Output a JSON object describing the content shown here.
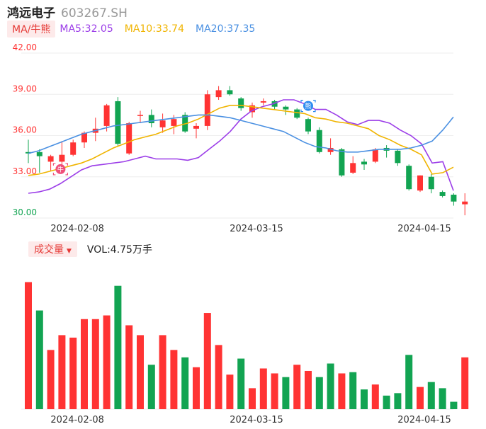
{
  "header": {
    "name": "鸿远电子",
    "code": "603267.SH"
  },
  "ma_legend": {
    "tag": "MA/牛熊",
    "ma5": "MA5:32.05",
    "ma10": "MA10:33.74",
    "ma20": "MA20:37.35"
  },
  "volume_legend": {
    "tag": "成交量",
    "value": "VOL:4.75万手"
  },
  "markers": {
    "bull": "牛",
    "bear": "熊"
  },
  "colors": {
    "up": "#ff3333",
    "down": "#12a452",
    "ma5": "#9c3ee8",
    "ma10": "#f0b400",
    "ma20": "#4a90e2",
    "grid": "#eeeeee"
  },
  "chart_data": [
    {
      "type": "candlestick",
      "title": "",
      "ylim": [
        30.0,
        42.0
      ],
      "yticks": [
        "42.00",
        "39.00",
        "36.00",
        "33.00",
        "30.00"
      ],
      "ytick_values": [
        42,
        39,
        36,
        33,
        30
      ],
      "xtick_labels": [
        {
          "index": 4,
          "label": "2024-02-08"
        },
        {
          "index": 20,
          "label": "2024-03-15"
        },
        {
          "index": 35,
          "label": "2024-04-15"
        }
      ],
      "candles": [
        {
          "o": 34.7,
          "h": 35.7,
          "l": 34.0,
          "c": 34.8,
          "up": false
        },
        {
          "o": 34.8,
          "h": 35.0,
          "l": 33.3,
          "c": 34.5,
          "up": false
        },
        {
          "o": 34.1,
          "h": 34.6,
          "l": 33.4,
          "c": 34.5,
          "up": true
        },
        {
          "o": 34.1,
          "h": 35.6,
          "l": 33.5,
          "c": 34.6,
          "up": true
        },
        {
          "o": 34.6,
          "h": 35.7,
          "l": 34.5,
          "c": 35.5,
          "up": true
        },
        {
          "o": 35.5,
          "h": 36.3,
          "l": 35.1,
          "c": 36.2,
          "up": true
        },
        {
          "o": 36.2,
          "h": 37.3,
          "l": 35.6,
          "c": 36.5,
          "up": true
        },
        {
          "o": 36.7,
          "h": 38.3,
          "l": 36.3,
          "c": 38.2,
          "up": true
        },
        {
          "o": 38.5,
          "h": 38.8,
          "l": 35.2,
          "c": 35.4,
          "up": false
        },
        {
          "o": 34.7,
          "h": 37.0,
          "l": 34.6,
          "c": 36.9,
          "up": true
        },
        {
          "o": 37.5,
          "h": 37.8,
          "l": 36.9,
          "c": 37.5,
          "up": true
        },
        {
          "o": 37.5,
          "h": 37.9,
          "l": 36.6,
          "c": 36.9,
          "up": false
        },
        {
          "o": 36.6,
          "h": 37.6,
          "l": 36.2,
          "c": 37.1,
          "up": true
        },
        {
          "o": 36.7,
          "h": 37.5,
          "l": 36.1,
          "c": 37.2,
          "up": true
        },
        {
          "o": 37.5,
          "h": 37.7,
          "l": 36.2,
          "c": 36.3,
          "up": false
        },
        {
          "o": 36.5,
          "h": 36.9,
          "l": 35.8,
          "c": 36.7,
          "up": true
        },
        {
          "o": 36.7,
          "h": 39.3,
          "l": 36.4,
          "c": 39.0,
          "up": true
        },
        {
          "o": 38.8,
          "h": 39.6,
          "l": 38.6,
          "c": 39.3,
          "up": true
        },
        {
          "o": 39.3,
          "h": 39.6,
          "l": 38.9,
          "c": 39.0,
          "up": false
        },
        {
          "o": 38.7,
          "h": 38.8,
          "l": 37.8,
          "c": 38.0,
          "up": false
        },
        {
          "o": 37.7,
          "h": 38.4,
          "l": 37.3,
          "c": 38.2,
          "up": true
        },
        {
          "o": 38.4,
          "h": 38.7,
          "l": 38.2,
          "c": 38.5,
          "up": true
        },
        {
          "o": 38.5,
          "h": 38.6,
          "l": 37.9,
          "c": 38.1,
          "up": false
        },
        {
          "o": 38.1,
          "h": 38.2,
          "l": 37.5,
          "c": 37.9,
          "up": false
        },
        {
          "o": 37.9,
          "h": 38.0,
          "l": 37.2,
          "c": 37.3,
          "up": false
        },
        {
          "o": 37.2,
          "h": 37.3,
          "l": 36.1,
          "c": 36.3,
          "up": false
        },
        {
          "o": 36.4,
          "h": 36.6,
          "l": 34.7,
          "c": 34.8,
          "up": false
        },
        {
          "o": 34.8,
          "h": 35.8,
          "l": 34.6,
          "c": 35.1,
          "up": true
        },
        {
          "o": 35.0,
          "h": 35.1,
          "l": 33.0,
          "c": 33.1,
          "up": false
        },
        {
          "o": 33.3,
          "h": 34.5,
          "l": 33.2,
          "c": 34.0,
          "up": true
        },
        {
          "o": 33.9,
          "h": 34.3,
          "l": 33.5,
          "c": 34.1,
          "up": false
        },
        {
          "o": 34.1,
          "h": 35.1,
          "l": 34.0,
          "c": 35.0,
          "up": true
        },
        {
          "o": 35.1,
          "h": 35.3,
          "l": 34.4,
          "c": 34.9,
          "up": false
        },
        {
          "o": 34.9,
          "h": 35.0,
          "l": 33.8,
          "c": 34.0,
          "up": false
        },
        {
          "o": 33.8,
          "h": 33.9,
          "l": 32.0,
          "c": 32.1,
          "up": false
        },
        {
          "o": 32.0,
          "h": 33.1,
          "l": 31.9,
          "c": 33.1,
          "up": true
        },
        {
          "o": 33.0,
          "h": 33.2,
          "l": 31.8,
          "c": 32.1,
          "up": false
        },
        {
          "o": 31.9,
          "h": 32.0,
          "l": 31.5,
          "c": 31.6,
          "up": false
        },
        {
          "o": 31.7,
          "h": 31.8,
          "l": 30.9,
          "c": 31.2,
          "up": false
        },
        {
          "o": 31.0,
          "h": 31.8,
          "l": 30.2,
          "c": 31.2,
          "up": true
        }
      ],
      "series": [
        {
          "name": "MA5",
          "values": [
            31.8,
            31.9,
            32.1,
            32.5,
            33.0,
            33.5,
            33.8,
            33.9,
            34.0,
            34.1,
            34.3,
            34.5,
            34.3,
            34.3,
            34.3,
            34.2,
            34.4,
            35.0,
            35.6,
            36.3,
            37.2,
            37.8,
            38.1,
            38.3,
            38.6,
            38.6,
            38.3,
            37.9,
            37.9,
            37.5,
            37.0,
            36.8,
            37.1,
            37.1,
            36.9,
            36.4,
            36.0,
            35.4,
            34.0,
            34.1,
            32.0
          ]
        },
        {
          "name": "MA10",
          "values": [
            33.1,
            33.2,
            33.4,
            33.6,
            33.8,
            34.0,
            34.3,
            34.7,
            35.1,
            35.4,
            35.7,
            35.9,
            36.1,
            36.4,
            36.7,
            36.9,
            37.2,
            37.6,
            38.0,
            38.2,
            38.2,
            38.1,
            38.0,
            37.9,
            37.8,
            37.7,
            37.6,
            37.3,
            37.2,
            37.0,
            36.9,
            36.7,
            36.5,
            36.0,
            35.7,
            35.3,
            35.0,
            34.6,
            33.2,
            33.3,
            33.7
          ]
        },
        {
          "name": "MA20",
          "values": [
            34.7,
            34.9,
            35.2,
            35.5,
            35.8,
            36.1,
            36.3,
            36.5,
            36.7,
            36.8,
            36.9,
            37.0,
            37.1,
            37.2,
            37.3,
            37.4,
            37.5,
            37.5,
            37.4,
            37.3,
            37.1,
            36.9,
            36.7,
            36.5,
            36.3,
            35.9,
            35.5,
            35.2,
            35.1,
            34.9,
            34.8,
            34.8,
            34.9,
            35.0,
            35.0,
            35.0,
            35.1,
            35.3,
            35.6,
            36.4,
            37.35
          ]
        }
      ],
      "markers": [
        {
          "index": 3,
          "kind": "bull",
          "value": 33.3
        },
        {
          "index": 25,
          "kind": "bear",
          "value": 37.9
        }
      ]
    },
    {
      "type": "bar",
      "title": "",
      "xtick_labels": [
        {
          "index": 4,
          "label": "2024-02-08"
        },
        {
          "index": 20,
          "label": "2024-03-15"
        },
        {
          "index": 35,
          "label": "2024-04-15"
        }
      ],
      "values": [
        10.3,
        8.0,
        4.8,
        6.0,
        5.8,
        7.3,
        7.3,
        7.6,
        10.0,
        6.8,
        6.0,
        3.6,
        6.0,
        4.8,
        4.2,
        3.4,
        7.8,
        5.2,
        2.8,
        4.1,
        1.7,
        3.3,
        2.9,
        2.6,
        3.6,
        3.1,
        2.6,
        3.7,
        2.9,
        3.0,
        1.6,
        2.0,
        1.1,
        1.3,
        4.4,
        1.8,
        2.2,
        1.7,
        0.6,
        4.2
      ],
      "up": [
        true,
        false,
        true,
        true,
        true,
        true,
        true,
        true,
        false,
        true,
        true,
        false,
        true,
        true,
        false,
        true,
        true,
        true,
        true,
        false,
        true,
        true,
        true,
        false,
        true,
        true,
        false,
        false,
        true,
        false,
        false,
        true,
        false,
        false,
        false,
        true,
        false,
        false,
        false,
        true
      ],
      "ylim": [
        0,
        10.5
      ]
    }
  ]
}
